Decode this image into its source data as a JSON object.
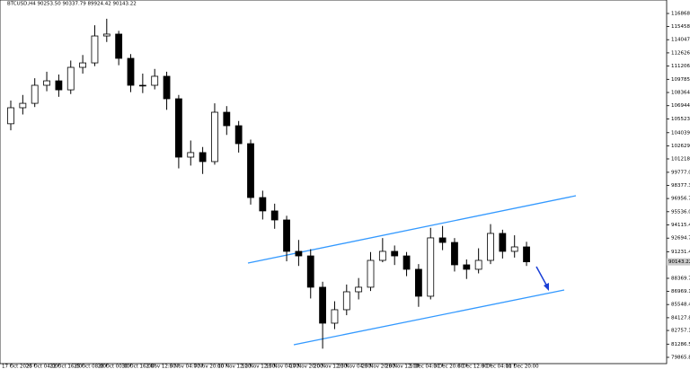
{
  "chart_data": {
    "type": "candlestick",
    "title": "BTCUSD,H4  90253.50 90337.79 89924.42 90143.22",
    "categories": [
      "17 Oct 2025",
      null,
      "20 Oct 04:00",
      null,
      "22 Oct 16:00",
      null,
      "25 Oct 08:00",
      null,
      "28 Oct 00:00",
      null,
      "30 Oct 16:00",
      null,
      "2 Nov 12:00",
      null,
      "5 Nov 04:00",
      null,
      "7 Nov 20:00",
      null,
      "10 Nov 12:00",
      null,
      "12 Nov 12:00",
      null,
      "15 Nov 04:00",
      null,
      "17 Nov 20:00",
      null,
      "20 Nov 12:00",
      null,
      "23 Nov 04:00",
      null,
      "25 Nov 20:00",
      null,
      "28 Nov 12:00",
      null,
      "1 Dec 04:00",
      null,
      "3 Dec 20:00",
      null,
      "6 Dec 12:00",
      null,
      "9 Dec 04:00",
      null,
      "11 Dec 20:00",
      null
    ],
    "open": [
      105000,
      106725,
      107200,
      109140,
      109620,
      108650,
      111070,
      111550,
      114450,
      114650,
      112040,
      109140,
      109140,
      110110,
      107690,
      101410,
      101900,
      100930,
      106240,
      104790,
      102860,
      97060,
      95620,
      94650,
      91270,
      90780,
      87410,
      83540,
      84990,
      86920,
      87410,
      90300,
      91270,
      90780,
      89340,
      86440,
      92720,
      92230,
      89820,
      89340,
      90300,
      93200,
      91270,
      91750
    ],
    "high": [
      107500,
      108100,
      109900,
      110600,
      110300,
      111800,
      112400,
      115600,
      116300,
      115000,
      112500,
      110400,
      110900,
      110600,
      108100,
      103200,
      102500,
      107200,
      106900,
      105300,
      103300,
      97800,
      96400,
      95100,
      92500,
      91500,
      88000,
      85900,
      87700,
      88400,
      91200,
      92700,
      91900,
      91200,
      89900,
      93800,
      94000,
      92700,
      90400,
      91600,
      94200,
      93600,
      93000,
      92300
    ],
    "low": [
      104300,
      106000,
      106800,
      108500,
      107900,
      108200,
      110400,
      111200,
      113800,
      111300,
      108400,
      108300,
      108700,
      106500,
      100200,
      100500,
      99600,
      100600,
      103800,
      101900,
      96300,
      94700,
      93700,
      90200,
      89700,
      86200,
      80800,
      82900,
      84400,
      86100,
      87000,
      90100,
      89800,
      88600,
      85300,
      86100,
      91400,
      89100,
      88300,
      88900,
      89900,
      90500,
      90600,
      89700
    ],
    "close": [
      106725,
      107200,
      109140,
      109620,
      108650,
      111070,
      111550,
      114450,
      114650,
      112040,
      109140,
      109140,
      110110,
      107690,
      101410,
      101900,
      100930,
      106240,
      104790,
      102860,
      97060,
      95620,
      94650,
      91270,
      90780,
      87410,
      83540,
      84990,
      86920,
      87410,
      90300,
      91270,
      90780,
      89340,
      86440,
      92720,
      92230,
      89820,
      89340,
      90300,
      93200,
      91270,
      91750,
      90143
    ],
    "last_price": 90143.22,
    "ylim": [
      79190,
      118318
    ],
    "yticks": [
      116868.65,
      115458.08,
      114047.35,
      {
        "value": 112626.9,
        "label": "112626.90"
      },
      111206.25,
      {
        "value": 109785.6,
        "label": "109785.60"
      },
      108364.95,
      {
        "value": 106944.3,
        "label": "106944.30"
      },
      105523.65,
      104039.95,
      {
        "value": 102629.3,
        "label": "102629.30"
      },
      101218.65,
      {
        "value": 99777,
        "label": "99777.00"
      },
      98377.35,
      {
        "value": 96956.7,
        "label": "96956.70"
      },
      95536.05,
      {
        "value": 94115.4,
        "label": "94115.40"
      },
      92694.75,
      91231.45,
      {
        "value": 89890.1,
        "label": "89890.10"
      },
      88369.75,
      {
        "value": 86969.1,
        "label": "86969.10"
      },
      85548.45,
      {
        "value": 84127.8,
        "label": "84127.80"
      },
      82757.15,
      {
        "value": 81286.5,
        "label": "81286.50"
      },
      79865.85
    ]
  }
}
